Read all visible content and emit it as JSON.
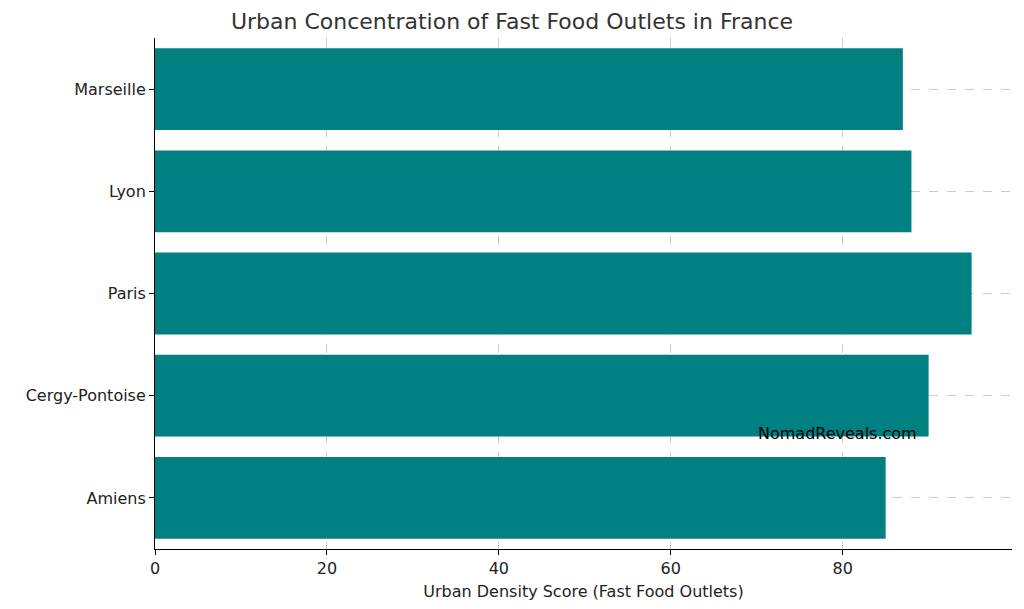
{
  "chart_data": {
    "type": "bar",
    "orientation": "horizontal",
    "title": "Urban Concentration of Fast Food Outlets in France",
    "x_label": "Urban Density Score (Fast Food Outlets)",
    "categories": [
      "Amiens",
      "Cergy-Pontoise",
      "Paris",
      "Lyon",
      "Marseille"
    ],
    "values": [
      85,
      90,
      95,
      88,
      87
    ],
    "color": "#008080",
    "xlim": [
      0,
      99.7
    ],
    "xticks": [
      0,
      20,
      40,
      60,
      80
    ],
    "grid": true,
    "annotations": [
      "NomadReveals.com"
    ]
  }
}
